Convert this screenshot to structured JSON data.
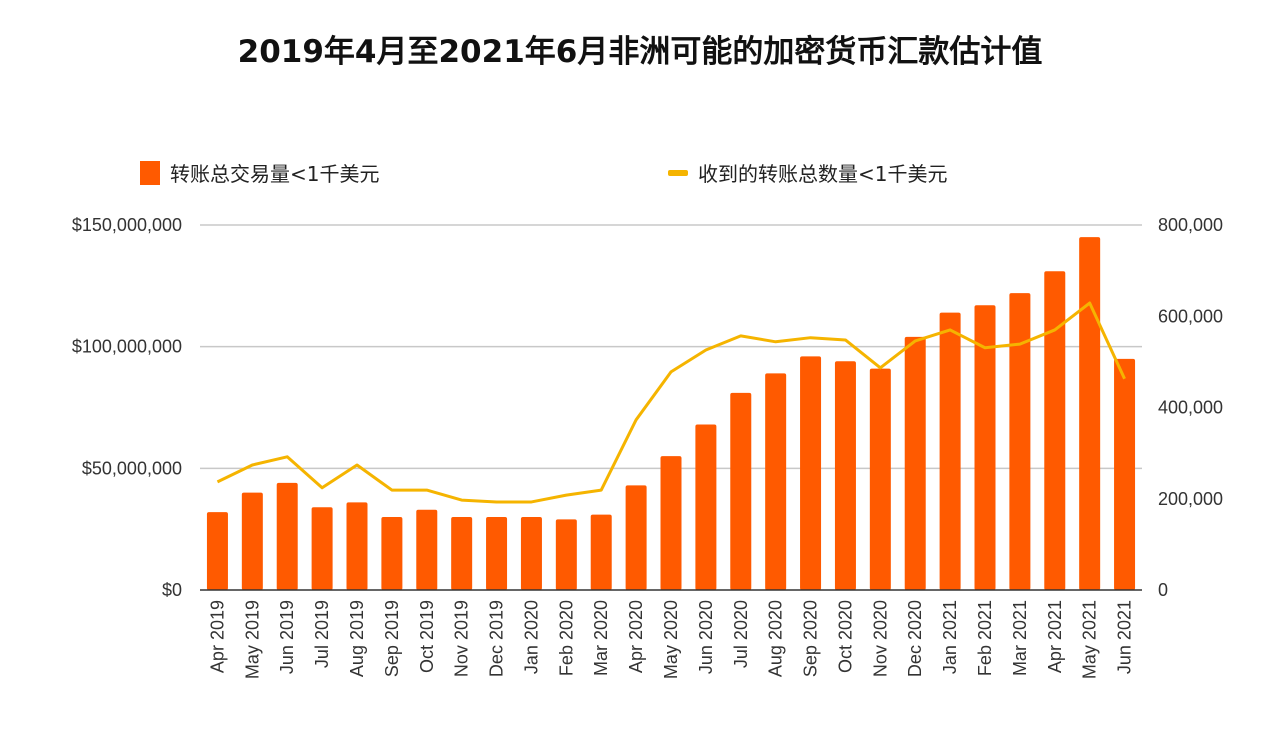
{
  "chart_data": {
    "type": "bar",
    "title": "2019年4月至2021年6月非洲可能的加密货币汇款估计值",
    "categories": [
      "Apr 2019",
      "May 2019",
      "Jun 2019",
      "Jul 2019",
      "Aug 2019",
      "Sep 2019",
      "Oct 2019",
      "Nov 2019",
      "Dec 2019",
      "Jan 2020",
      "Feb 2020",
      "Mar 2020",
      "Apr 2020",
      "May 2020",
      "Jun 2020",
      "Jul 2020",
      "Aug 2020",
      "Sep 2020",
      "Oct 2020",
      "Nov 2020",
      "Dec 2020",
      "Jan 2021",
      "Feb 2021",
      "Mar 2021",
      "Apr 2021",
      "May 2021",
      "Jun 2021"
    ],
    "series": [
      {
        "name": "转账总交易量<1千美元",
        "type": "bar",
        "axis": "left",
        "color": "#ff5a00",
        "values": [
          32000000,
          40000000,
          44000000,
          34000000,
          36000000,
          30000000,
          33000000,
          30000000,
          30000000,
          30000000,
          29000000,
          31000000,
          43000000,
          55000000,
          68000000,
          81000000,
          89000000,
          96000000,
          94000000,
          91000000,
          104000000,
          114000000,
          117000000,
          122000000,
          131000000,
          145000000,
          95000000
        ]
      },
      {
        "name": "收到的转账总数量<1千美元",
        "type": "line",
        "axis": "right",
        "color": "#f5b400",
        "values": [
          237000,
          274000,
          292000,
          224000,
          274000,
          219000,
          219000,
          197000,
          193000,
          193000,
          208000,
          219000,
          373000,
          478000,
          526000,
          557000,
          544000,
          553000,
          548000,
          487000,
          546000,
          570000,
          531000,
          539000,
          570000,
          629000,
          463000
        ]
      }
    ],
    "left_axis": {
      "ylim": [
        0,
        150000000
      ],
      "ticks": [
        "$0",
        "$50,000,000",
        "$100,000,000",
        "$150,000,000"
      ],
      "tick_values": [
        0,
        50000000,
        100000000,
        150000000
      ]
    },
    "right_axis": {
      "ylim": [
        0,
        800000
      ],
      "ticks": [
        "0",
        "200,000",
        "400,000",
        "600,000",
        "800,000"
      ],
      "tick_values": [
        0,
        200000,
        400000,
        600000,
        800000
      ]
    },
    "grid": true,
    "legend": "top"
  }
}
